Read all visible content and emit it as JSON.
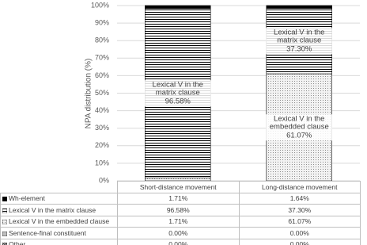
{
  "chart_data": {
    "type": "stacked_bar",
    "y_label": "NPA distribution (%)",
    "categories": [
      "Short-distance movement",
      "Long-distance movement"
    ],
    "series": [
      {
        "name": "Wh-element",
        "color": "#000000",
        "pattern": "solid",
        "values": [
          1.71,
          1.64
        ],
        "value_labels": [
          "1.71%",
          "1.64%"
        ]
      },
      {
        "name": "Lexical V in the matrix clause",
        "color": "#000000",
        "pattern": "horizontal-stripes",
        "values": [
          96.58,
          37.3
        ],
        "value_labels": [
          "96.58%",
          "37.30%"
        ],
        "data_labels": [
          true,
          true
        ]
      },
      {
        "name": "Lexical V in the embedded clause",
        "color": "#8c8c8c",
        "pattern": "dots",
        "values": [
          1.71,
          61.07
        ],
        "value_labels": [
          "1.71%",
          "61.07%"
        ],
        "data_labels": [
          false,
          true
        ]
      },
      {
        "name": "Sentence-final constituent",
        "color": "#bfbfbf",
        "pattern": "solid",
        "values": [
          0.0,
          0.0
        ],
        "value_labels": [
          "0.00%",
          "0.00%"
        ]
      },
      {
        "name": "Other",
        "color": "#595959",
        "pattern": "checker",
        "values": [
          0.0,
          0.0
        ],
        "value_labels": [
          "0.00%",
          "0.00%"
        ]
      }
    ],
    "ylim": [
      0,
      100
    ],
    "yticks": [
      {
        "value": 0,
        "label": "0%"
      },
      {
        "value": 10,
        "label": "10%"
      },
      {
        "value": 20,
        "label": "20%"
      },
      {
        "value": 30,
        "label": "30%"
      },
      {
        "value": 40,
        "label": "40%"
      },
      {
        "value": 50,
        "label": "50%"
      },
      {
        "value": 60,
        "label": "60%"
      },
      {
        "value": 70,
        "label": "70%"
      },
      {
        "value": 80,
        "label": "80%"
      },
      {
        "value": 90,
        "label": "90%"
      },
      {
        "value": 100,
        "label": "100%"
      }
    ],
    "grid": true,
    "data_table": true
  }
}
